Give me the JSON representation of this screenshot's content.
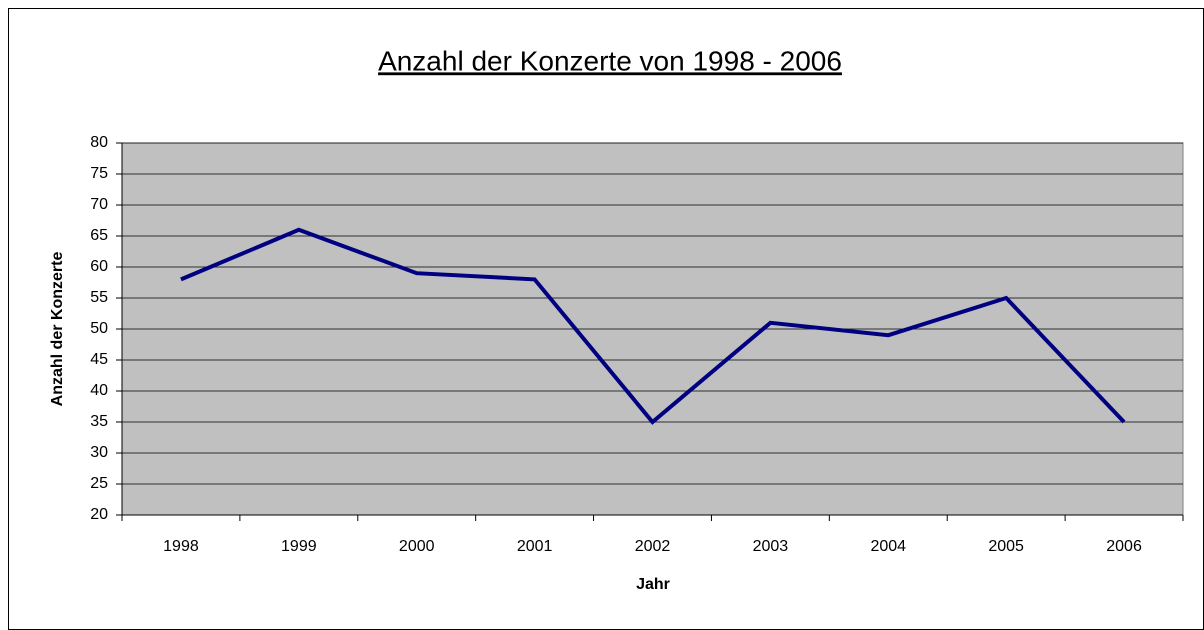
{
  "chart_data": {
    "type": "line",
    "title": "Anzahl der Konzerte von 1998 - 2006",
    "x_label": "Jahr",
    "y_label": "Anzahl der Konzerte",
    "categories": [
      "1998",
      "1999",
      "2000",
      "2001",
      "2002",
      "2003",
      "2004",
      "2005",
      "2006"
    ],
    "series": [
      {
        "name": "Anzahl der Konzerte",
        "color": "#000080",
        "values": [
          58,
          66,
          59,
          58,
          35,
          51,
          49,
          55,
          35
        ]
      }
    ],
    "ylim": [
      20,
      80
    ],
    "yticks": [
      20,
      25,
      30,
      35,
      40,
      45,
      50,
      55,
      60,
      65,
      70,
      75,
      80
    ],
    "grid": true,
    "legend": false
  }
}
